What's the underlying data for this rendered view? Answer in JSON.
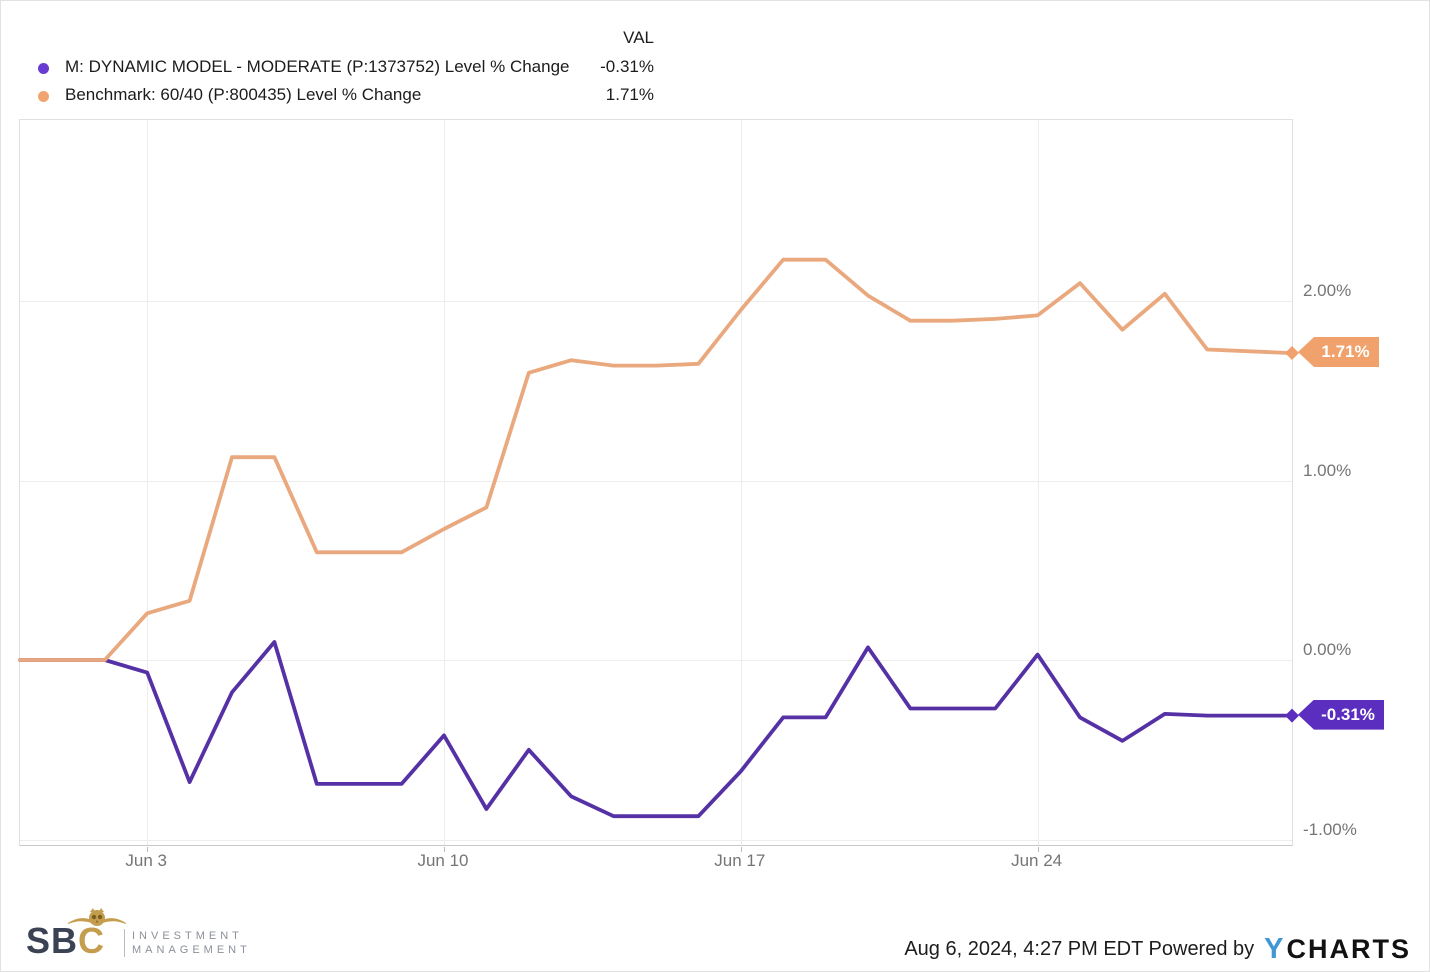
{
  "legend": {
    "val_header": "VAL",
    "series": [
      {
        "label": "M: DYNAMIC MODEL - MODERATE (P:1373752) Level % Change",
        "value": "-0.31%",
        "dot_color": "#6a3bd0"
      },
      {
        "label": "Benchmark: 60/40 (P:800435) Level % Change",
        "value": "1.71%",
        "dot_color": "#f2a470"
      }
    ]
  },
  "chart_data": {
    "type": "line",
    "title": "",
    "xlabel": "",
    "ylabel": "Level % Change",
    "grid": true,
    "legend_position": "top-left",
    "ylim": [
      -1.04,
      3.01
    ],
    "x": [
      "May 31",
      "Jun 1",
      "Jun 2",
      "Jun 3",
      "Jun 4",
      "Jun 5",
      "Jun 6",
      "Jun 7",
      "Jun 8",
      "Jun 9",
      "Jun 10",
      "Jun 11",
      "Jun 12",
      "Jun 13",
      "Jun 14",
      "Jun 15",
      "Jun 16",
      "Jun 17",
      "Jun 18",
      "Jun 19",
      "Jun 20",
      "Jun 21",
      "Jun 22",
      "Jun 23",
      "Jun 24",
      "Jun 25",
      "Jun 26",
      "Jun 27",
      "Jun 28",
      "Jun 29",
      "Jun 30"
    ],
    "x_tick_labels": [
      {
        "label": "Jun 3",
        "index": 3
      },
      {
        "label": "Jun 10",
        "index": 10
      },
      {
        "label": "Jun 17",
        "index": 17
      },
      {
        "label": "Jun 24",
        "index": 24
      }
    ],
    "y_ticks": [
      {
        "label": "2.00%",
        "value": 2.0
      },
      {
        "label": "1.00%",
        "value": 1.0
      },
      {
        "label": "0.00%",
        "value": 0.0
      },
      {
        "label": "-1.00%",
        "value": -1.0
      }
    ],
    "series": [
      {
        "name": "M: DYNAMIC MODEL - MODERATE (P:1373752) Level % Change",
        "color": "#5531a5",
        "tag_color": "#5b2ec0",
        "end_label": "-0.31%",
        "tag_width": 86,
        "values": [
          0.0,
          0.0,
          0.0,
          -0.07,
          -0.68,
          -0.18,
          0.1,
          -0.69,
          -0.69,
          -0.69,
          -0.42,
          -0.83,
          -0.5,
          -0.76,
          -0.87,
          -0.87,
          -0.87,
          -0.62,
          -0.32,
          -0.32,
          0.07,
          -0.27,
          -0.27,
          -0.27,
          0.03,
          -0.32,
          -0.45,
          -0.3,
          -0.31,
          -0.31,
          -0.31
        ]
      },
      {
        "name": "Benchmark: 60/40 (P:800435) Level % Change",
        "color": "#e9a87d",
        "tag_color": "#f0a16c",
        "end_label": "1.71%",
        "tag_width": 81,
        "values": [
          0.0,
          0.0,
          0.0,
          0.26,
          0.33,
          1.13,
          1.13,
          0.6,
          0.6,
          0.6,
          0.73,
          0.85,
          1.6,
          1.67,
          1.64,
          1.64,
          1.65,
          1.95,
          2.23,
          2.23,
          2.03,
          1.89,
          1.89,
          1.9,
          1.92,
          2.1,
          1.84,
          2.04,
          1.73,
          1.72,
          1.71
        ]
      }
    ]
  },
  "footer": {
    "logo": {
      "sbc_s": "S",
      "sbc_b": "B",
      "sbc_c": "C",
      "line1": "INVESTMENT",
      "line2": "MANAGEMENT"
    },
    "timestamp": "Aug 6, 2024, 4:27 PM EDT Powered by",
    "ycharts_y": "Y",
    "ycharts_rest": "CHARTS"
  },
  "colors": {
    "grid": "#ededed",
    "frame": "#e0e0e0",
    "axis_text": "#757575",
    "legend_text": "#1c1c1c",
    "ycharts_blue": "#3f97d3",
    "sbc_gold": "#c59d4e",
    "sbc_dark": "#3a4254"
  }
}
